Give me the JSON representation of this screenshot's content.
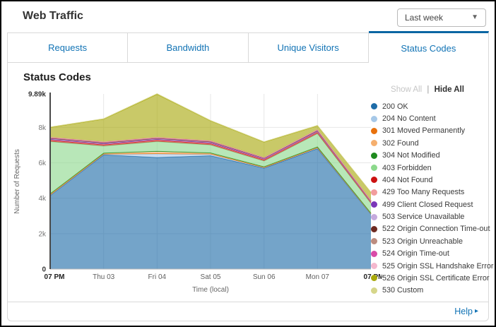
{
  "header": {
    "title": "Web Traffic",
    "range_select": {
      "value": "Last week",
      "caret_glyph": "▼"
    }
  },
  "tabs": [
    {
      "label": "Requests",
      "active": false
    },
    {
      "label": "Bandwidth",
      "active": false
    },
    {
      "label": "Unique Visitors",
      "active": false
    },
    {
      "label": "Status Codes",
      "active": true
    }
  ],
  "panel": {
    "heading": "Status Codes"
  },
  "legend": {
    "show_all": "Show All",
    "divider": "|",
    "hide_all": "Hide All"
  },
  "footer": {
    "help_label": "Help",
    "arrow_glyph": "▸"
  },
  "colors": {
    "link_blue": "#1173b5",
    "active_tab_bar": "#0b66a3",
    "card_border": "#d9d9d9",
    "grid_line": "#e7e7e7",
    "axis_line": "#4a4a4a"
  },
  "chart_data": {
    "type": "area",
    "stacked": true,
    "title": "Status Codes",
    "xlabel": "Time (local)",
    "ylabel": "Number of Requests",
    "x_labels": [
      "07 PM",
      "Thu 03",
      "Fri 04",
      "Sat 05",
      "Sun 06",
      "Mon 07",
      "07 PM"
    ],
    "x_labels_bold": [
      true,
      false,
      false,
      false,
      false,
      false,
      true
    ],
    "y_ticks": [
      {
        "label": "0",
        "value": 0,
        "bold": true
      },
      {
        "label": "2k",
        "value": 2000,
        "bold": false
      },
      {
        "label": "4k",
        "value": 4000,
        "bold": false
      },
      {
        "label": "6k",
        "value": 6000,
        "bold": false
      },
      {
        "label": "8k",
        "value": 8000,
        "bold": false
      },
      {
        "label": "9.89k",
        "value": 9890,
        "bold": true
      }
    ],
    "ylim": [
      0,
      9890
    ],
    "grid": true,
    "legend_position": "right",
    "fill_opacity": 0.62,
    "series": [
      {
        "code": "200",
        "name": "200 OK",
        "color": "#1e6ca8",
        "values": [
          4150,
          6450,
          6300,
          6400,
          5700,
          6800,
          3100
        ]
      },
      {
        "code": "204",
        "name": "204 No Content",
        "color": "#a6c8e8",
        "values": [
          30,
          40,
          200,
          90,
          30,
          40,
          20
        ]
      },
      {
        "code": "301",
        "name": "301 Moved Permanently",
        "color": "#e8710d",
        "values": [
          10,
          10,
          20,
          10,
          10,
          10,
          10
        ]
      },
      {
        "code": "302",
        "name": "302 Found",
        "color": "#f5af6e",
        "values": [
          40,
          40,
          120,
          50,
          30,
          40,
          20
        ]
      },
      {
        "code": "304",
        "name": "304 Not Modified",
        "color": "#1e8a1e",
        "values": [
          20,
          10,
          10,
          10,
          10,
          10,
          10
        ]
      },
      {
        "code": "403",
        "name": "403 Forbidden",
        "color": "#8cd98c",
        "values": [
          2950,
          400,
          550,
          450,
          320,
          750,
          550
        ]
      },
      {
        "code": "404",
        "name": "404 Not Found",
        "color": "#cc1111",
        "values": [
          80,
          80,
          80,
          80,
          80,
          80,
          80
        ]
      },
      {
        "code": "429",
        "name": "429 Too Many Requests",
        "color": "#f29d9d",
        "values": [
          20,
          20,
          20,
          20,
          20,
          20,
          10
        ]
      },
      {
        "code": "499",
        "name": "499 Client Closed Request",
        "color": "#7a36b8",
        "values": [
          30,
          30,
          30,
          30,
          30,
          30,
          20
        ]
      },
      {
        "code": "503",
        "name": "503 Service Unavailable",
        "color": "#c5aadd",
        "values": [
          30,
          30,
          30,
          30,
          20,
          20,
          20
        ]
      },
      {
        "code": "522",
        "name": "522 Origin Connection Time-out",
        "color": "#6e2a21",
        "values": [
          30,
          20,
          20,
          20,
          20,
          20,
          10
        ]
      },
      {
        "code": "523",
        "name": "523 Origin Unreachable",
        "color": "#bd8d80",
        "values": [
          20,
          20,
          20,
          20,
          10,
          20,
          10
        ]
      },
      {
        "code": "524",
        "name": "524 Origin Time-out",
        "color": "#d94ba8",
        "values": [
          20,
          20,
          20,
          20,
          10,
          20,
          10
        ]
      },
      {
        "code": "525",
        "name": "525 Origin SSL Handshake Error",
        "color": "#f4b8ce",
        "values": [
          20,
          20,
          20,
          20,
          10,
          20,
          10
        ]
      },
      {
        "code": "526",
        "name": "526 Origin SSL Certificate Error",
        "color": "#a8a80b",
        "values": [
          550,
          1280,
          2430,
          1120,
          870,
          210,
          450
        ]
      },
      {
        "code": "530",
        "name": "530 Custom",
        "color": "#d6d68a",
        "values": [
          20,
          20,
          30,
          20,
          20,
          20,
          10
        ]
      }
    ]
  }
}
